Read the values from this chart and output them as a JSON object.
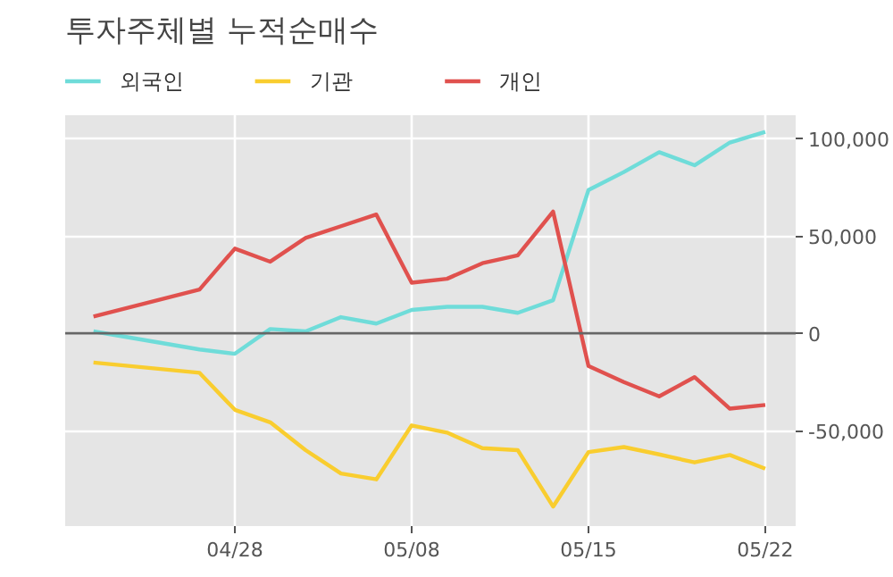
{
  "chart_data": {
    "type": "line",
    "title": "투자주체별 누적순매수",
    "categories": [
      null,
      null,
      null,
      null,
      "04/28",
      null,
      null,
      null,
      null,
      "05/08",
      null,
      null,
      null,
      null,
      "05/15",
      null,
      null,
      null,
      null,
      "05/22"
    ],
    "series": [
      {
        "name": "외국인",
        "color": "#6fdcd9",
        "values": [
          1000,
          null,
          null,
          -8300,
          -10500,
          2200,
          1000,
          8300,
          5000,
          12000,
          13600,
          13600,
          10500,
          17000,
          73600,
          82800,
          93000,
          86300,
          98000,
          103500
        ]
      },
      {
        "name": "기관",
        "color": "#f9cd2f",
        "values": [
          -15000,
          null,
          null,
          -20300,
          -39300,
          -45700,
          -60000,
          -72000,
          -75000,
          -47300,
          -51000,
          -59000,
          -60000,
          -89000,
          -61000,
          -58400,
          -62200,
          -66300,
          -62500,
          -69500
        ]
      },
      {
        "name": "개인",
        "color": "#e0514e",
        "values": [
          8600,
          null,
          null,
          22500,
          43500,
          36800,
          49000,
          55000,
          61000,
          26000,
          28000,
          36000,
          40000,
          62500,
          -16800,
          -25000,
          -32400,
          -22500,
          -38700,
          -36800
        ]
      }
    ],
    "ylim": [
      -99000,
      112000
    ],
    "yticks": [
      {
        "value": -50000,
        "label": "-50,000"
      },
      0,
      {
        "value": 50000,
        "label": "50,000"
      },
      {
        "value": 100000,
        "label": "100,000"
      }
    ],
    "ref_lines": [
      {
        "axis": "y",
        "value": 0,
        "color": "#666666"
      }
    ],
    "grid": true,
    "legend": "top left",
    "marker": "none",
    "line_style": "solid"
  }
}
